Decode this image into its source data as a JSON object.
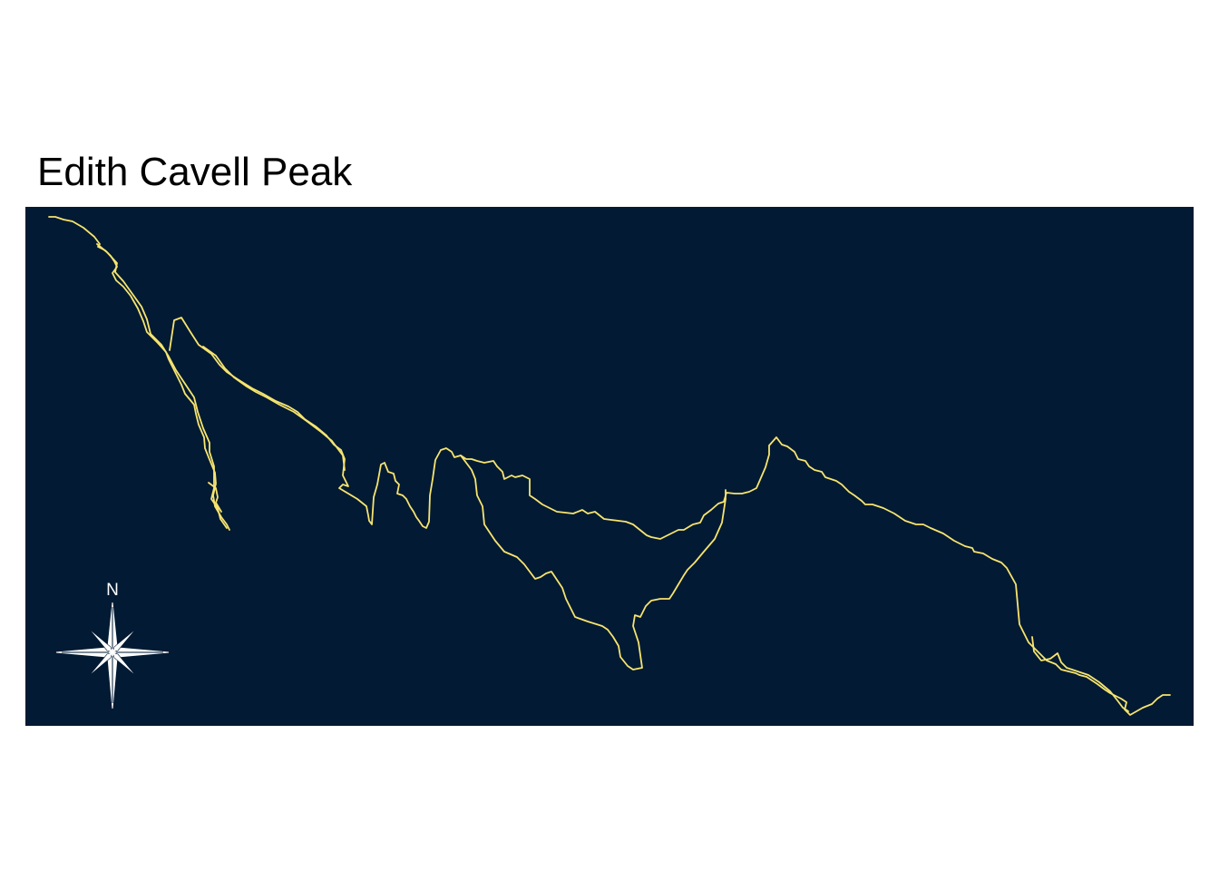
{
  "map": {
    "title": "Edith Cavell Peak",
    "background_color": "#021a33",
    "route_color": "#f7e46f"
  },
  "compass": {
    "north_label": "N",
    "color": "#ffffff",
    "icon": "compass-rose-icon"
  }
}
